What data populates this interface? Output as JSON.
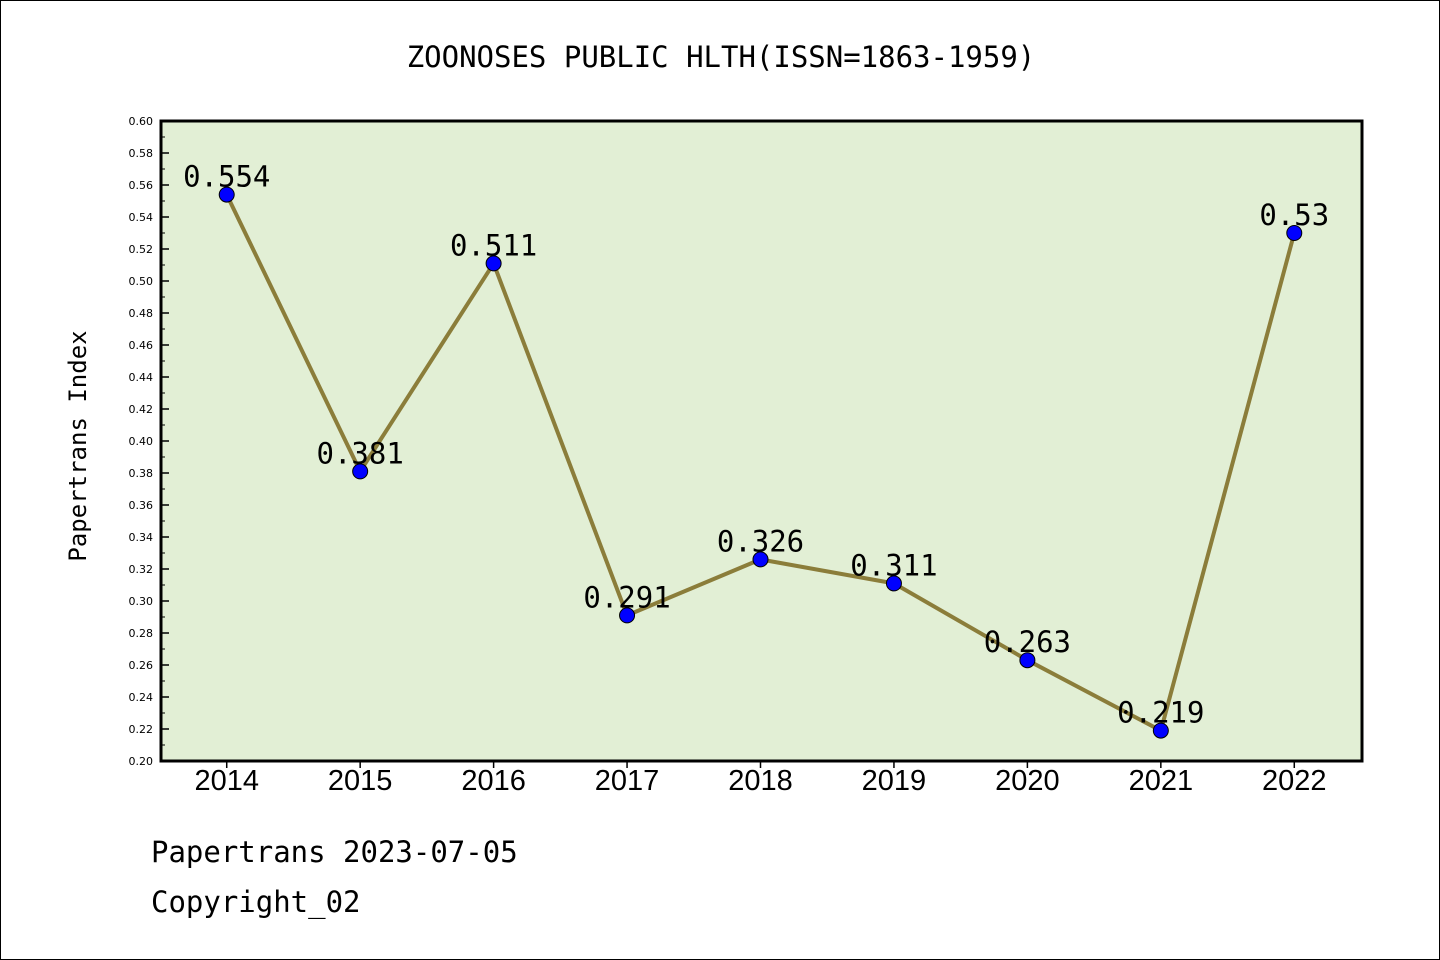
{
  "chart_data": {
    "type": "line",
    "title": "ZOONOSES PUBLIC HLTH(ISSN=1863-1959)",
    "xlabel": "",
    "ylabel": "Papertrans Index",
    "categories": [
      "2014",
      "2015",
      "2016",
      "2017",
      "2018",
      "2019",
      "2020",
      "2021",
      "2022"
    ],
    "values": [
      0.554,
      0.381,
      0.511,
      0.291,
      0.326,
      0.311,
      0.263,
      0.219,
      0.53
    ],
    "data_labels": [
      "0.554",
      "0.381",
      "0.511",
      "0.291",
      "0.326",
      "0.311",
      "0.263",
      "0.219",
      "0.53"
    ],
    "ylim": [
      0.2,
      0.6
    ],
    "ytick_labels": [
      "0.20",
      "0.22",
      "0.24",
      "0.26",
      "0.28",
      "0.30",
      "0.32",
      "0.34",
      "0.36",
      "0.38",
      "0.40",
      "0.42",
      "0.44",
      "0.46",
      "0.48",
      "0.50",
      "0.52",
      "0.54",
      "0.56",
      "0.58",
      "0.60"
    ],
    "grid": false,
    "colors": {
      "plot_background": "#e2efd5",
      "line": "#8b7d3a",
      "marker": "#0000ff",
      "axes": "#000000"
    }
  },
  "footer": {
    "date_line": "Papertrans 2023-07-05",
    "copyright_line": "Copyright_02"
  }
}
